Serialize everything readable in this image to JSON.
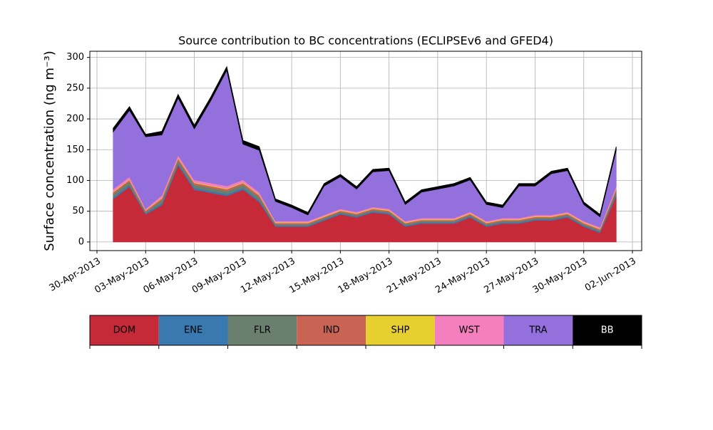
{
  "chart_data": {
    "type": "stacked_area",
    "title": "Source contribution to BC concentrations (ECLIPSEv6 and GFED4)",
    "ylabel": "Surface concentration (ng m⁻³)",
    "x": [
      "2013-05-01",
      "2013-05-02",
      "2013-05-03",
      "2013-05-04",
      "2013-05-05",
      "2013-05-06",
      "2013-05-07",
      "2013-05-08",
      "2013-05-09",
      "2013-05-10",
      "2013-05-11",
      "2013-05-12",
      "2013-05-13",
      "2013-05-14",
      "2013-05-15",
      "2013-05-16",
      "2013-05-17",
      "2013-05-18",
      "2013-05-19",
      "2013-05-20",
      "2013-05-21",
      "2013-05-22",
      "2013-05-23",
      "2013-05-24",
      "2013-05-25",
      "2013-05-26",
      "2013-05-27",
      "2013-05-28",
      "2013-05-29",
      "2013-05-30",
      "2013-05-31",
      "2013-06-01"
    ],
    "xlim": [
      "2013-04-30",
      "2013-06-02"
    ],
    "xticks": [
      {
        "value": "2013-04-30",
        "label": "30-Apr-2013"
      },
      {
        "value": "2013-05-03",
        "label": "03-May-2013"
      },
      {
        "value": "2013-05-06",
        "label": "06-May-2013"
      },
      {
        "value": "2013-05-09",
        "label": "09-May-2013"
      },
      {
        "value": "2013-05-12",
        "label": "12-May-2013"
      },
      {
        "value": "2013-05-15",
        "label": "15-May-2013"
      },
      {
        "value": "2013-05-18",
        "label": "18-May-2013"
      },
      {
        "value": "2013-05-21",
        "label": "21-May-2013"
      },
      {
        "value": "2013-05-24",
        "label": "24-May-2013"
      },
      {
        "value": "2013-05-27",
        "label": "27-May-2013"
      },
      {
        "value": "2013-05-30",
        "label": "30-May-2013"
      },
      {
        "value": "2013-06-02",
        "label": "02-Jun-2013"
      }
    ],
    "ylim": [
      -14,
      310
    ],
    "yticks": [
      0,
      50,
      100,
      150,
      200,
      250,
      300
    ],
    "grid": true,
    "series": [
      {
        "name": "DOM",
        "color": "#c62a38",
        "values": [
          70,
          90,
          45,
          60,
          125,
          85,
          80,
          75,
          85,
          65,
          25,
          25,
          25,
          35,
          45,
          40,
          48,
          45,
          25,
          30,
          30,
          30,
          40,
          25,
          30,
          30,
          35,
          35,
          40,
          25,
          15,
          75
        ]
      },
      {
        "name": "ENE",
        "color": "#3a78b0",
        "values": [
          3,
          3,
          2,
          3,
          3,
          3,
          3,
          3,
          3,
          3,
          2,
          2,
          2,
          2,
          2,
          2,
          2,
          2,
          2,
          2,
          2,
          2,
          2,
          2,
          2,
          2,
          2,
          2,
          2,
          2,
          2,
          3
        ]
      },
      {
        "name": "FLR",
        "color": "#6b7f6e",
        "values": [
          5,
          5,
          2,
          5,
          5,
          5,
          5,
          5,
          5,
          5,
          2,
          2,
          2,
          2,
          2,
          2,
          2,
          2,
          2,
          2,
          2,
          2,
          2,
          2,
          2,
          2,
          2,
          2,
          2,
          2,
          2,
          5
        ]
      },
      {
        "name": "IND",
        "color": "#c96353",
        "values": [
          3,
          3,
          2,
          3,
          3,
          3,
          3,
          3,
          3,
          3,
          2,
          2,
          2,
          2,
          2,
          2,
          2,
          2,
          2,
          2,
          2,
          2,
          2,
          2,
          2,
          2,
          2,
          2,
          2,
          2,
          2,
          3
        ]
      },
      {
        "name": "SHP",
        "color": "#e6cf2e",
        "values": [
          1,
          1,
          1,
          1,
          1,
          1,
          1,
          1,
          1,
          1,
          1,
          1,
          1,
          1,
          1,
          1,
          1,
          1,
          1,
          1,
          1,
          1,
          1,
          1,
          1,
          1,
          1,
          1,
          1,
          1,
          1,
          1
        ]
      },
      {
        "name": "WST",
        "color": "#f47fbf",
        "values": [
          4,
          4,
          2,
          4,
          4,
          4,
          4,
          4,
          4,
          4,
          2,
          2,
          2,
          2,
          2,
          2,
          2,
          2,
          2,
          2,
          2,
          2,
          2,
          2,
          2,
          2,
          2,
          2,
          2,
          2,
          2,
          4
        ]
      },
      {
        "name": "TRA",
        "color": "#9370db",
        "values": [
          93,
          108,
          117,
          98,
          93,
          83,
          133,
          188,
          58,
          68,
          32,
          22,
          10,
          47,
          52,
          37,
          57,
          62,
          27,
          42,
          47,
          52,
          52,
          27,
          17,
          52,
          47,
          67,
          67,
          27,
          17,
          58
        ]
      },
      {
        "name": "BB",
        "color": "#000000",
        "values": [
          6,
          6,
          4,
          6,
          6,
          6,
          6,
          6,
          6,
          6,
          4,
          4,
          4,
          4,
          4,
          4,
          4,
          4,
          4,
          4,
          4,
          4,
          4,
          4,
          4,
          4,
          4,
          4,
          4,
          4,
          4,
          6
        ]
      }
    ]
  }
}
